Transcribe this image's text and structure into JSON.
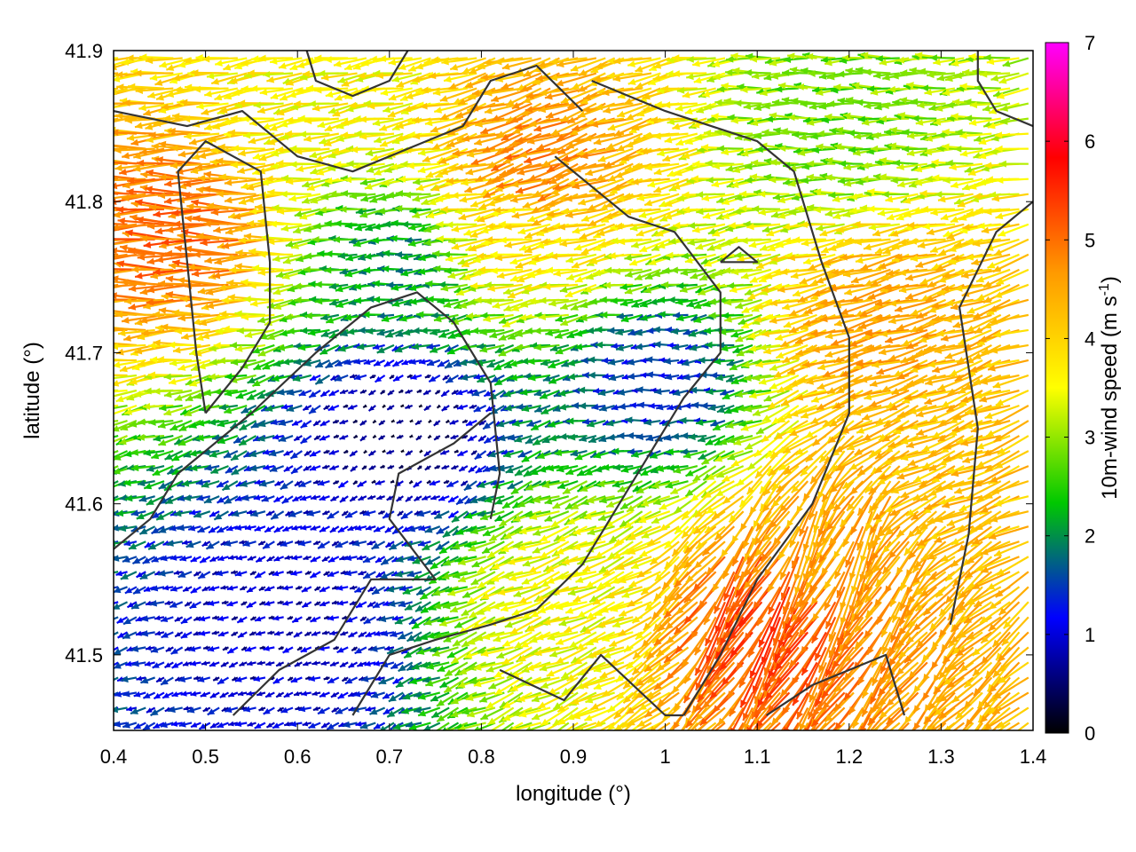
{
  "chart_data": {
    "type": "vector-field",
    "xlabel": "longitude (°)",
    "ylabel": "latitude (°)",
    "colorbar_label": "10m-wind speed (m s",
    "colorbar_label_sup": "-1",
    "colorbar_label_close": ")",
    "xlim": [
      0.4,
      1.4
    ],
    "ylim": [
      41.45,
      41.9
    ],
    "xticks": [
      0.4,
      0.5,
      0.6,
      0.7,
      0.8,
      0.9,
      1.0,
      1.1,
      1.2,
      1.3,
      1.4
    ],
    "xtick_labels": [
      "0.4",
      "0.5",
      "0.6",
      "0.7",
      "0.8",
      "0.9",
      "1",
      "1.1",
      "1.2",
      "1.3",
      "1.4"
    ],
    "yticks": [
      41.5,
      41.6,
      41.7,
      41.8,
      41.9
    ],
    "ytick_labels": [
      "41.5",
      "41.6",
      "41.7",
      "41.8",
      "41.9"
    ],
    "colorbar_range": [
      0,
      7
    ],
    "colorbar_ticks": [
      0,
      1,
      2,
      3,
      4,
      5,
      6,
      7
    ],
    "colorbar_tick_labels": [
      "0",
      "1",
      "2",
      "3",
      "4",
      "5",
      "6",
      "7"
    ],
    "colorbar_colors": [
      "#000000",
      "#0000ff",
      "#00c800",
      "#ffff00",
      "#ff9a00",
      "#ff0000",
      "#ff00ff"
    ],
    "arrow_grid": {
      "lon_step": 0.01,
      "lat_step": 0.01
    },
    "wind_regions": [
      {
        "lon": 0.49,
        "lat": 41.78,
        "speed": 5.0,
        "dir_deg": 180
      },
      {
        "lon": 0.88,
        "lat": 41.83,
        "speed": 4.8,
        "dir_deg": 200
      },
      {
        "lon": 0.85,
        "lat": 41.78,
        "speed": 3.8,
        "dir_deg": 190
      },
      {
        "lon": 1.25,
        "lat": 41.72,
        "speed": 4.5,
        "dir_deg": 195
      },
      {
        "lon": 1.33,
        "lat": 41.63,
        "speed": 4.2,
        "dir_deg": 200
      },
      {
        "lon": 1.2,
        "lat": 41.58,
        "speed": 4.5,
        "dir_deg": 245
      },
      {
        "lon": 1.12,
        "lat": 41.53,
        "speed": 5.3,
        "dir_deg": 240
      },
      {
        "lon": 0.9,
        "lat": 41.54,
        "speed": 3.5,
        "dir_deg": 200
      },
      {
        "lon": 0.64,
        "lat": 41.87,
        "speed": 3.6,
        "dir_deg": 190
      },
      {
        "lon": 1.2,
        "lat": 41.85,
        "speed": 2.8,
        "dir_deg": 180
      },
      {
        "lon": 0.72,
        "lat": 41.65,
        "speed": 0.4,
        "dir_deg": 210
      },
      {
        "lon": 0.6,
        "lat": 41.52,
        "speed": 0.8,
        "dir_deg": 200
      },
      {
        "lon": 1.0,
        "lat": 41.68,
        "speed": 1.3,
        "dir_deg": 185
      },
      {
        "lon": 0.72,
        "lat": 41.76,
        "speed": 2.0,
        "dir_deg": 185
      }
    ],
    "contours": [
      [
        [
          0.5,
          41.66
        ],
        [
          0.49,
          41.7
        ],
        [
          0.48,
          41.76
        ],
        [
          0.47,
          41.82
        ],
        [
          0.5,
          41.84
        ],
        [
          0.56,
          41.82
        ],
        [
          0.57,
          41.76
        ],
        [
          0.57,
          41.72
        ],
        [
          0.54,
          41.69
        ],
        [
          0.5,
          41.66
        ]
      ],
      [
        [
          0.4,
          41.86
        ],
        [
          0.48,
          41.85
        ],
        [
          0.54,
          41.86
        ],
        [
          0.6,
          41.83
        ],
        [
          0.66,
          41.82
        ],
        [
          0.74,
          41.84
        ],
        [
          0.78,
          41.85
        ],
        [
          0.81,
          41.88
        ],
        [
          0.86,
          41.89
        ],
        [
          0.91,
          41.86
        ]
      ],
      [
        [
          0.4,
          41.57
        ],
        [
          0.44,
          41.59
        ],
        [
          0.47,
          41.62
        ],
        [
          0.55,
          41.66
        ],
        [
          0.62,
          41.7
        ],
        [
          0.68,
          41.73
        ],
        [
          0.73,
          41.74
        ],
        [
          0.77,
          41.72
        ],
        [
          0.81,
          41.68
        ],
        [
          0.82,
          41.62
        ],
        [
          0.81,
          41.59
        ]
      ],
      [
        [
          0.53,
          41.46
        ],
        [
          0.58,
          41.49
        ],
        [
          0.64,
          41.51
        ],
        [
          0.68,
          41.55
        ],
        [
          0.75,
          41.55
        ],
        [
          0.7,
          41.59
        ],
        [
          0.71,
          41.62
        ],
        [
          0.77,
          41.64
        ],
        [
          0.81,
          41.66
        ]
      ],
      [
        [
          0.66,
          41.46
        ],
        [
          0.7,
          41.5
        ],
        [
          0.75,
          41.51
        ],
        [
          0.81,
          41.52
        ],
        [
          0.86,
          41.53
        ],
        [
          0.91,
          41.56
        ],
        [
          0.95,
          41.6
        ],
        [
          0.99,
          41.64
        ],
        [
          1.02,
          41.67
        ],
        [
          1.06,
          41.7
        ],
        [
          1.06,
          41.74
        ],
        [
          1.01,
          41.78
        ],
        [
          0.96,
          41.79
        ],
        [
          0.92,
          41.81
        ],
        [
          0.88,
          41.83
        ]
      ],
      [
        [
          1.02,
          41.46
        ],
        [
          1.06,
          41.5
        ],
        [
          1.1,
          41.55
        ],
        [
          1.16,
          41.6
        ],
        [
          1.2,
          41.66
        ],
        [
          1.2,
          41.71
        ],
        [
          1.17,
          41.76
        ],
        [
          1.14,
          41.82
        ],
        [
          1.1,
          41.84
        ],
        [
          1.05,
          41.85
        ],
        [
          1.0,
          41.86
        ],
        [
          0.96,
          41.87
        ],
        [
          0.92,
          41.88
        ]
      ],
      [
        [
          0.82,
          41.49
        ],
        [
          0.89,
          41.47
        ],
        [
          0.93,
          41.5
        ],
        [
          1.0,
          41.46
        ],
        [
          1.02,
          41.46
        ]
      ],
      [
        [
          1.11,
          41.46
        ],
        [
          1.16,
          41.48
        ],
        [
          1.2,
          41.49
        ],
        [
          1.24,
          41.5
        ],
        [
          1.26,
          41.46
        ]
      ],
      [
        [
          1.31,
          41.52
        ],
        [
          1.33,
          41.58
        ],
        [
          1.34,
          41.65
        ],
        [
          1.32,
          41.73
        ],
        [
          1.36,
          41.78
        ],
        [
          1.4,
          41.8
        ]
      ],
      [
        [
          1.34,
          41.9
        ],
        [
          1.34,
          41.88
        ],
        [
          1.36,
          41.86
        ],
        [
          1.4,
          41.85
        ]
      ],
      [
        [
          1.06,
          41.76
        ],
        [
          1.08,
          41.77
        ],
        [
          1.1,
          41.76
        ],
        [
          1.06,
          41.76
        ]
      ],
      [
        [
          0.61,
          41.9
        ],
        [
          0.62,
          41.88
        ],
        [
          0.66,
          41.87
        ],
        [
          0.7,
          41.88
        ],
        [
          0.72,
          41.9
        ]
      ]
    ]
  }
}
